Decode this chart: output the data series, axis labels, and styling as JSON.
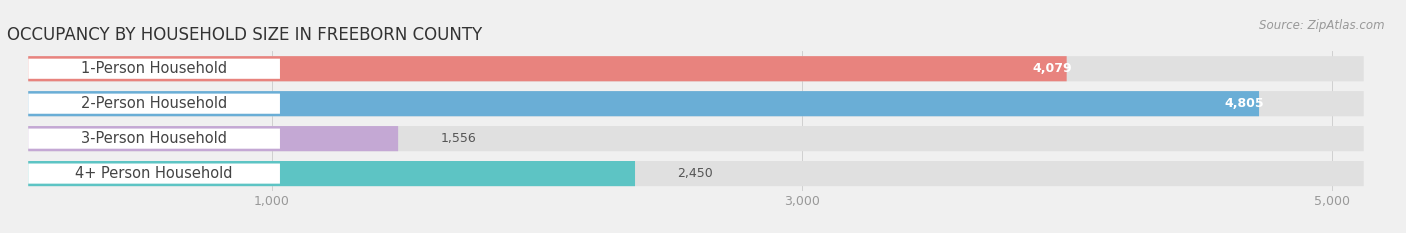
{
  "title": "OCCUPANCY BY HOUSEHOLD SIZE IN FREEBORN COUNTY",
  "source": "Source: ZipAtlas.com",
  "categories": [
    "1-Person Household",
    "2-Person Household",
    "3-Person Household",
    "4+ Person Household"
  ],
  "values": [
    4079,
    4805,
    1556,
    2450
  ],
  "bar_colors": [
    "#e8837e",
    "#6aaed6",
    "#c4a8d4",
    "#5dc4c4"
  ],
  "background_color": "#f0f0f0",
  "bar_bg_color": "#e0e0e0",
  "xlim": [
    0,
    5200
  ],
  "xticks": [
    1000,
    3000,
    5000
  ],
  "bar_height": 0.72,
  "title_fontsize": 12,
  "label_fontsize": 10.5,
  "value_fontsize": 9,
  "tick_fontsize": 9,
  "source_fontsize": 8.5,
  "inside_threshold": 3500
}
